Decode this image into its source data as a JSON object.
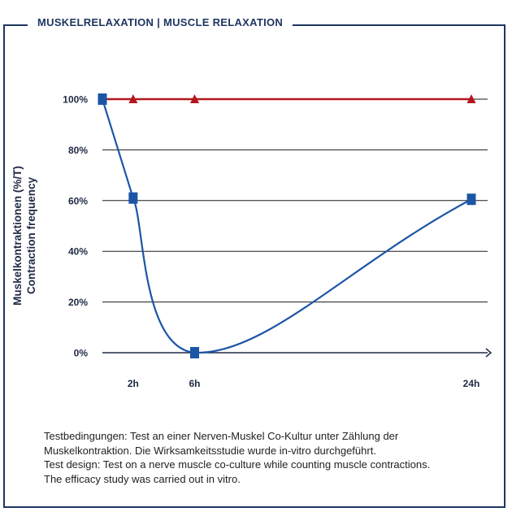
{
  "header": {
    "title": "MUSKELRELAXATION | MUSCLE RELAXATION"
  },
  "chart_data": {
    "type": "line",
    "title": "",
    "xlabel": "",
    "ylabel": "Muskelkontraktionen (%/T)\nContraction frequency",
    "ylabel_lines": [
      "Muskelkontraktionen (%/T)",
      "Contraction frequency"
    ],
    "x_ticks": [
      "2h",
      "6h",
      "24h"
    ],
    "x_tick_values": [
      2,
      6,
      24
    ],
    "xlim": [
      0,
      25
    ],
    "y_ticks": [
      "0%",
      "20%",
      "40%",
      "60%",
      "80%",
      "100%"
    ],
    "y_tick_values": [
      0,
      20,
      40,
      60,
      80,
      100
    ],
    "ylim": [
      0,
      100
    ],
    "grid": true,
    "legend": "none",
    "series": [
      {
        "marker": "triangle",
        "color": "#b3161d",
        "x": [
          0,
          2,
          6,
          24
        ],
        "values": [
          100,
          100,
          100,
          100
        ]
      },
      {
        "marker": "square",
        "color": "#1c55a5",
        "x": [
          0,
          2,
          6,
          24
        ],
        "values": [
          100,
          61,
          0,
          60.5
        ]
      }
    ]
  },
  "caption": {
    "lines": [
      "Testbedingungen: Test an einer Nerven-Muskel Co-Kultur unter Zählung der",
      "Muskelkontraktion. Die Wirksamkeitsstudie wurde in-vitro durchgeführt.",
      "Test design: Test on a nerve muscle co-culture while counting muscle contractions.",
      "The efficacy study was carried out in vitro."
    ]
  }
}
